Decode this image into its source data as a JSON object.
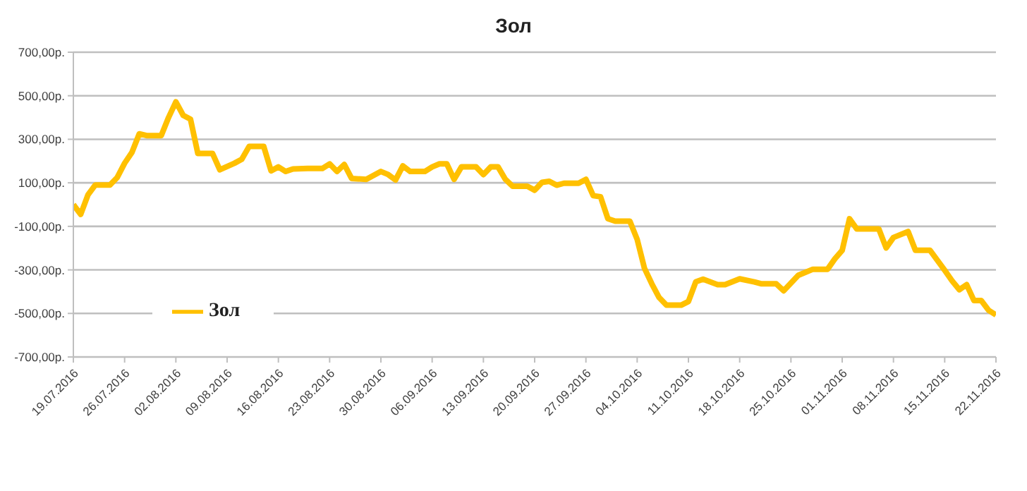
{
  "chart_data": {
    "type": "line",
    "title": "Зол",
    "x": [
      "2016-07-19",
      "2016-07-20",
      "2016-07-21",
      "2016-07-22",
      "2016-07-24",
      "2016-07-25",
      "2016-07-26",
      "2016-07-27",
      "2016-07-28",
      "2016-07-29",
      "2016-07-31",
      "2016-08-01",
      "2016-08-02",
      "2016-08-03",
      "2016-08-04",
      "2016-08-05",
      "2016-08-07",
      "2016-08-08",
      "2016-08-10",
      "2016-08-11",
      "2016-08-12",
      "2016-08-14",
      "2016-08-15",
      "2016-08-16",
      "2016-08-17",
      "2016-08-18",
      "2016-08-20",
      "2016-08-22",
      "2016-08-23",
      "2016-08-24",
      "2016-08-25",
      "2016-08-26",
      "2016-08-28",
      "2016-08-30",
      "2016-08-31",
      "2016-09-01",
      "2016-09-02",
      "2016-09-03",
      "2016-09-05",
      "2016-09-06",
      "2016-09-07",
      "2016-09-08",
      "2016-09-09",
      "2016-09-10",
      "2016-09-12",
      "2016-09-13",
      "2016-09-14",
      "2016-09-15",
      "2016-09-16",
      "2016-09-17",
      "2016-09-19",
      "2016-09-20",
      "2016-09-21",
      "2016-09-22",
      "2016-09-23",
      "2016-09-24",
      "2016-09-26",
      "2016-09-27",
      "2016-09-28",
      "2016-09-29",
      "2016-09-30",
      "2016-10-01",
      "2016-10-03",
      "2016-10-04",
      "2016-10-05",
      "2016-10-06",
      "2016-10-07",
      "2016-10-08",
      "2016-10-10",
      "2016-10-11",
      "2016-10-12",
      "2016-10-13",
      "2016-10-15",
      "2016-10-16",
      "2016-10-18",
      "2016-10-20",
      "2016-10-21",
      "2016-10-23",
      "2016-10-24",
      "2016-10-26",
      "2016-10-28",
      "2016-10-30",
      "2016-10-31",
      "2016-11-01",
      "2016-11-02",
      "2016-11-03",
      "2016-11-06",
      "2016-11-07",
      "2016-11-08",
      "2016-11-10",
      "2016-11-11",
      "2016-11-13",
      "2016-11-15",
      "2016-11-16",
      "2016-11-17",
      "2016-11-18",
      "2016-11-19",
      "2016-11-20",
      "2016-11-21",
      "2016-11-22"
    ],
    "series": [
      {
        "name": "Зол",
        "color": "#ffc000",
        "values": [
          0,
          -45,
          45,
          90,
          90,
          125,
          190,
          240,
          325,
          317,
          317,
          400,
          472,
          410,
          392,
          235,
          235,
          160,
          190,
          208,
          267,
          267,
          155,
          173,
          152,
          164,
          166,
          166,
          187,
          152,
          184,
          120,
          116,
          152,
          138,
          113,
          178,
          152,
          152,
          173,
          187,
          187,
          116,
          173,
          173,
          138,
          173,
          173,
          116,
          84,
          84,
          66,
          102,
          107,
          89,
          98,
          98,
          116,
          41,
          36,
          -65,
          -76,
          -76,
          -160,
          -293,
          -364,
          -427,
          -462,
          -462,
          -445,
          -355,
          -343,
          -368,
          -368,
          -341,
          -355,
          -364,
          -364,
          -396,
          -325,
          -297,
          -297,
          -249,
          -210,
          -65,
          -112,
          -112,
          -199,
          -151,
          -124,
          -210,
          -210,
          -302,
          -350,
          -391,
          -368,
          -441,
          -441,
          -486,
          -507
        ]
      }
    ],
    "xlim": [
      "2016-07-19",
      "2016-11-22"
    ],
    "xticks": [
      {
        "value": "2016-07-19",
        "label": "19.07.2016"
      },
      {
        "value": "2016-07-26",
        "label": "26.07.2016"
      },
      {
        "value": "2016-08-02",
        "label": "02.08.2016"
      },
      {
        "value": "2016-08-09",
        "label": "09.08.2016"
      },
      {
        "value": "2016-08-16",
        "label": "16.08.2016"
      },
      {
        "value": "2016-08-23",
        "label": "23.08.2016"
      },
      {
        "value": "2016-08-30",
        "label": "30.08.2016"
      },
      {
        "value": "2016-09-06",
        "label": "06.09.2016"
      },
      {
        "value": "2016-09-13",
        "label": "13.09.2016"
      },
      {
        "value": "2016-09-20",
        "label": "20.09.2016"
      },
      {
        "value": "2016-09-27",
        "label": "27.09.2016"
      },
      {
        "value": "2016-10-04",
        "label": "04.10.2016"
      },
      {
        "value": "2016-10-11",
        "label": "11.10.2016"
      },
      {
        "value": "2016-10-18",
        "label": "18.10.2016"
      },
      {
        "value": "2016-10-25",
        "label": "25.10.2016"
      },
      {
        "value": "2016-11-01",
        "label": "01.11.2016"
      },
      {
        "value": "2016-11-08",
        "label": "08.11.2016"
      },
      {
        "value": "2016-11-15",
        "label": "15.11.2016"
      },
      {
        "value": "2016-11-22",
        "label": "22.11.2016"
      }
    ],
    "ylim": [
      -700,
      700
    ],
    "yticks": [
      {
        "value": -700,
        "label": "-700,00р."
      },
      {
        "value": -500,
        "label": "-500,00р."
      },
      {
        "value": -300,
        "label": "-300,00р."
      },
      {
        "value": -100,
        "label": "-100,00р."
      },
      {
        "value": 100,
        "label": "100,00р."
      },
      {
        "value": 300,
        "label": "300,00р."
      },
      {
        "value": 500,
        "label": "500,00р."
      },
      {
        "value": 700,
        "label": "700,00р."
      }
    ],
    "grid": "y",
    "legend": "left",
    "marker": "none",
    "line_style": "solid"
  }
}
